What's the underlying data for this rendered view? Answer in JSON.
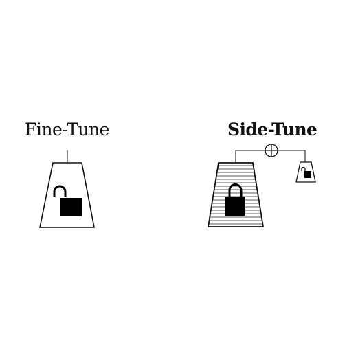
{
  "diagram": {
    "left": {
      "label": "Fine-Tune",
      "bold": false,
      "weight_icon": "trapezoid-weight-icon",
      "lock_icon": "unlocked-padlock-icon"
    },
    "right": {
      "label": "Side-Tune",
      "bold": true,
      "main_weight_icon": "hatched-trapezoid-weight-icon",
      "main_lock_icon": "locked-padlock-icon",
      "combine_icon": "circled-plus-icon",
      "side_weight_icon": "small-trapezoid-weight-icon",
      "side_lock_icon": "small-unlocked-padlock-icon"
    }
  },
  "colors": {
    "stroke": "#111111",
    "fill": "#000000",
    "background": "#ffffff"
  }
}
